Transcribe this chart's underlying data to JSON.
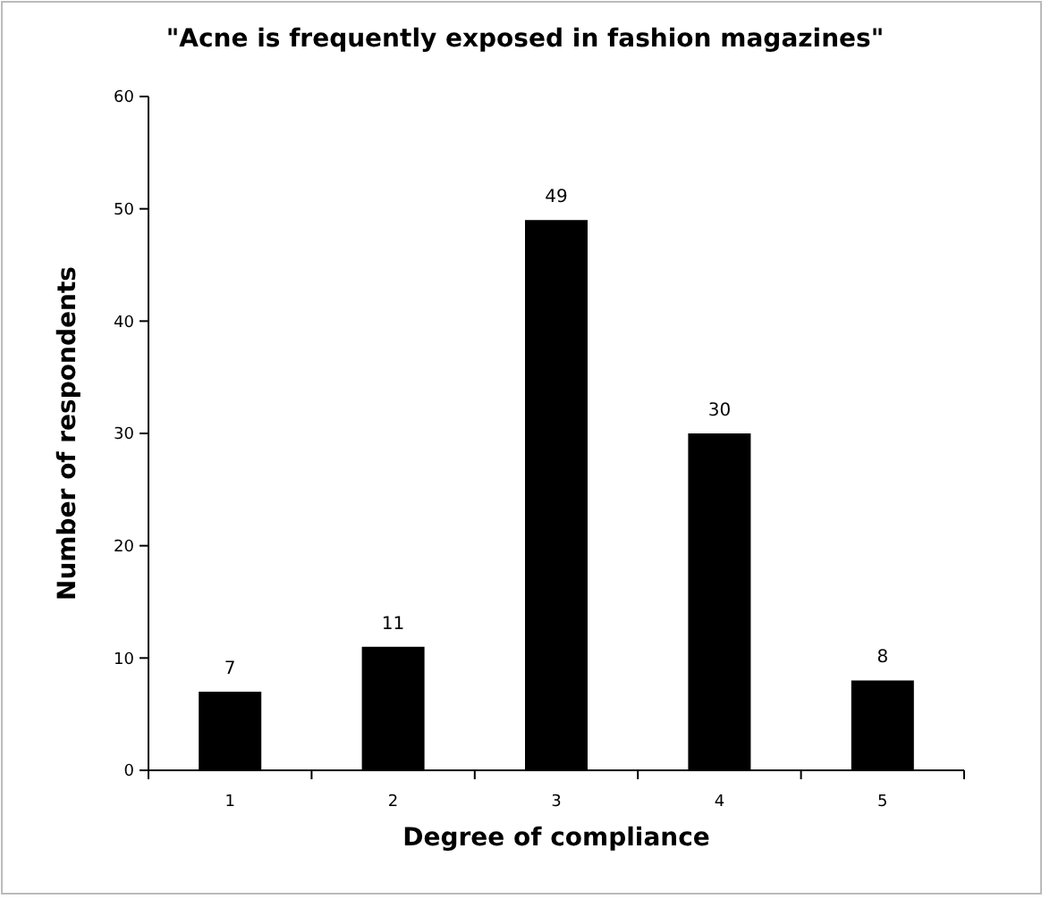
{
  "chart_data": {
    "type": "bar",
    "title": "\"Acne is frequently exposed in fashion magazines\"",
    "xlabel": "Degree of compliance",
    "ylabel": "Number of respondents",
    "categories": [
      "1",
      "2",
      "3",
      "4",
      "5"
    ],
    "values": [
      7,
      11,
      49,
      30,
      8
    ],
    "color": "#000000",
    "ylim": [
      0,
      60
    ],
    "yticks": [
      0,
      10,
      20,
      30,
      40,
      50,
      60
    ],
    "data_labels": true
  }
}
